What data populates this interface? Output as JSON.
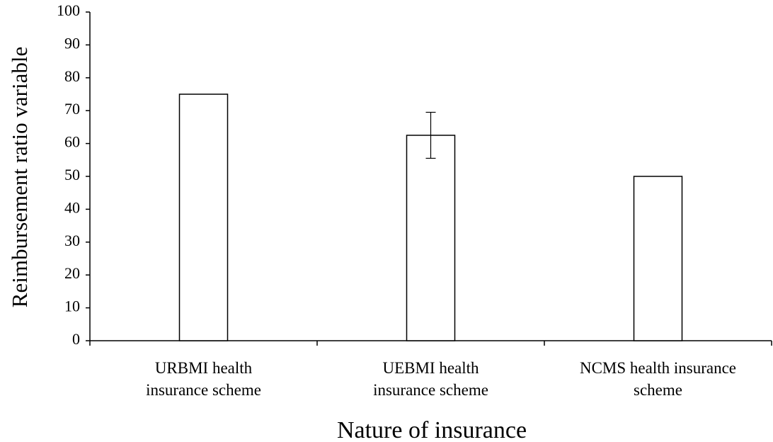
{
  "chart_data": {
    "type": "bar",
    "xlabel": "Nature of insurance",
    "ylabel": "Reimbursement  ratio variable",
    "categories": [
      [
        "URBMI health",
        "insurance scheme"
      ],
      [
        "UEBMI health",
        "insurance scheme"
      ],
      [
        "NCMS health insurance",
        "scheme"
      ]
    ],
    "values": [
      75,
      62.5,
      50
    ],
    "errors": [
      null,
      7,
      null
    ],
    "color": "#ffffff",
    "edgecolor": "#000000",
    "ylim": [
      0,
      100
    ],
    "yticks": [
      0,
      10,
      20,
      30,
      40,
      50,
      60,
      70,
      80,
      90,
      100
    ],
    "grid": false
  }
}
